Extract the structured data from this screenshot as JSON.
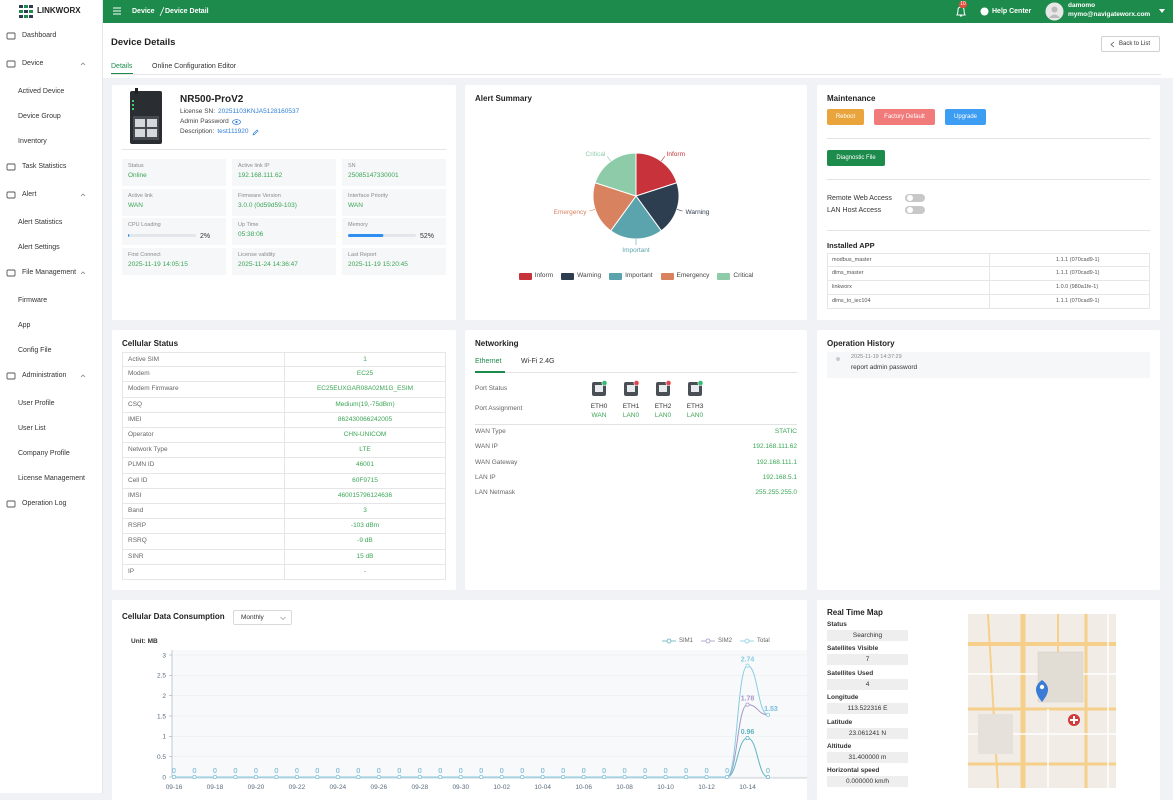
{
  "sidebar": {
    "logo": "LINKWORX",
    "menu": [
      {
        "label": "Dashboard"
      },
      {
        "label": "Device",
        "children": [
          "Actived Device",
          "Device Group",
          "Inventory"
        ]
      },
      {
        "label": "Task Statistics"
      },
      {
        "label": "Alert",
        "children": [
          "Alert Statistics",
          "Alert Settings"
        ]
      },
      {
        "label": "File Management",
        "children": [
          "Firmware",
          "App",
          "Config File"
        ]
      },
      {
        "label": "Administration",
        "children": [
          "User Profile",
          "User List",
          "Company Profile",
          "License Management"
        ]
      },
      {
        "label": "Operation Log"
      }
    ]
  },
  "topbar": {
    "breadcrumb": [
      "Device",
      "Device Detail"
    ],
    "notifications": 10,
    "help": "Help Center",
    "user": {
      "name": "damomo",
      "email": "mymo@navigateworx.com"
    }
  },
  "header": {
    "title": "Device Details",
    "back": "Back to List",
    "tabs": [
      "Details",
      "Online Configuration Editor"
    ]
  },
  "device": {
    "name": "NR500-ProV2",
    "license_sn_label": "License SN:",
    "license_sn": "20251103KNJA5128160537",
    "admin_password_label": "Admin Password",
    "description_label": "Description:",
    "description": "test111920",
    "stats": [
      {
        "label": "Status",
        "value": "Online"
      },
      {
        "label": "Active link IP",
        "value": "192.168.111.62"
      },
      {
        "label": "SN",
        "value": "25085147330001"
      },
      {
        "label": "Active link",
        "value": "WAN"
      },
      {
        "label": "Firmware Version",
        "value": "3.0.0 (0d59d59-103)"
      },
      {
        "label": "Interface Priority",
        "value": "WAN"
      },
      {
        "label": "CPU Loading",
        "value": 2,
        "value_label": "2%"
      },
      {
        "label": "Up Time",
        "value": "05:38:06"
      },
      {
        "label": "Memory",
        "value": 52,
        "value_label": "52%"
      },
      {
        "label": "First Connect",
        "value": "2025-11-19 14:05:15"
      },
      {
        "label": "License validity",
        "value": "2025-11-24 14:36:47"
      },
      {
        "label": "Last Report",
        "value": "2025-11-19 15:20:45"
      }
    ]
  },
  "maintenance": {
    "title": "Maintenance",
    "buttons": [
      {
        "label": "Reboot",
        "color": "#e9a43c"
      },
      {
        "label": "Factory Default",
        "color": "#f17b7b"
      },
      {
        "label": "Upgrade",
        "color": "#3d9df2"
      }
    ],
    "diagnostic": "Diagnostic File",
    "toggles": [
      "Remote Web Access",
      "LAN Host Access"
    ],
    "installed_title": "Installed APP",
    "apps": [
      [
        "modbus_master",
        "1.1.1 (070cad9-1)"
      ],
      [
        "dlms_master",
        "1.1.1 (070cad9-1)"
      ],
      [
        "linkworx",
        "1.0.0 (980a1fe-1)"
      ],
      [
        "dlms_to_iec104",
        "1.1.1 (070cad9-1)"
      ]
    ]
  },
  "cellular": {
    "title": "Cellular Status",
    "rows": [
      [
        "Active SIM",
        "1"
      ],
      [
        "Modem",
        "EC25"
      ],
      [
        "Modem Firmware",
        "EC25EUXGAR08A02M1G_ESIM"
      ],
      [
        "CSQ",
        "Medium(19,-75dBm)"
      ],
      [
        "IMEI",
        "862430066242005"
      ],
      [
        "Operator",
        "CHN-UNICOM"
      ],
      [
        "Network Type",
        "LTE"
      ],
      [
        "PLMN ID",
        "46001"
      ],
      [
        "Cell ID",
        "60F9715"
      ],
      [
        "IMSI",
        "460015796124636"
      ],
      [
        "Band",
        "3"
      ],
      [
        "RSRP",
        "-103 dBm"
      ],
      [
        "RSRQ",
        "-9 dB"
      ],
      [
        "SINR",
        "15 dB"
      ],
      [
        "IP",
        "-"
      ]
    ]
  },
  "networking": {
    "title": "Networking",
    "tabs": [
      "Ethernet",
      "Wi-Fi 2.4G"
    ],
    "port_status_label": "Port Status",
    "port_assignment_label": "Port Assignment",
    "ports": [
      {
        "name": "ETH0",
        "assignment": "WAN",
        "connected": true
      },
      {
        "name": "ETH1",
        "assignment": "LAN0",
        "connected": false
      },
      {
        "name": "ETH2",
        "assignment": "LAN0",
        "connected": false
      },
      {
        "name": "ETH3",
        "assignment": "LAN0",
        "connected": true
      }
    ],
    "fields": [
      [
        "WAN Type",
        "STATIC"
      ],
      [
        "WAN IP",
        "192.168.111.62"
      ],
      [
        "WAN Gateway",
        "192.168.111.1"
      ],
      [
        "LAN IP",
        "192.168.5.1"
      ],
      [
        "LAN Netmask",
        "255.255.255.0"
      ]
    ]
  },
  "history": {
    "title": "Operation History",
    "entries": [
      {
        "time": "2025-11-19 14:37:29",
        "text": "report admin password"
      }
    ]
  },
  "data_usage": {
    "period": "Monthly"
  },
  "map": {
    "title": "Real Time Map",
    "fields": [
      [
        "Status",
        "Searching"
      ],
      [
        "Satellites Visible",
        "7"
      ],
      [
        "Satellites Used",
        "4"
      ],
      [
        "Longitude",
        "113.522316 E"
      ],
      [
        "Latitude",
        "23.061241 N"
      ],
      [
        "Altitude",
        "31.400000 m"
      ],
      [
        "Horizontal speed",
        "0.000000 km/h"
      ]
    ]
  },
  "chart_data": [
    {
      "type": "pie",
      "title": "Alert Summary",
      "categories": [
        "Inform",
        "Warning",
        "Important",
        "Emergency",
        "Critical"
      ],
      "values": [
        1,
        1,
        1,
        1,
        1
      ],
      "colors": [
        "#c8323a",
        "#2d3e50",
        "#5ba3ad",
        "#d9825f",
        "#8ecba9"
      ]
    },
    {
      "type": "line",
      "title": "Cellular Data Consumption",
      "y_label": "Unit: MB",
      "categories": [
        "09-16",
        null,
        "09-18",
        null,
        "09-20",
        null,
        "09-22",
        null,
        "09-24",
        null,
        "09-26",
        null,
        "09-28",
        null,
        "09-30",
        null,
        "10-02",
        null,
        "10-04",
        null,
        "10-06",
        null,
        "10-08",
        null,
        "10-10",
        null,
        "10-12",
        null,
        "10-14",
        null
      ],
      "series": [
        {
          "name": "SIM1",
          "color": "#5fb4c1",
          "values": [
            0,
            0,
            0,
            0,
            0,
            0,
            0,
            0,
            0,
            0,
            0,
            0,
            0,
            0,
            0,
            0,
            0,
            0,
            0,
            0,
            0,
            0,
            0,
            0,
            0,
            0,
            0,
            0,
            0.96,
            0
          ]
        },
        {
          "name": "SIM2",
          "color": "#a597c9",
          "values": [
            0,
            0,
            0,
            0,
            0,
            0,
            0,
            0,
            0,
            0,
            0,
            0,
            0,
            0,
            0,
            0,
            0,
            0,
            0,
            0,
            0,
            0,
            0,
            0,
            0,
            0,
            0,
            0,
            1.78,
            1.53
          ]
        },
        {
          "name": "Total",
          "color": "#86cde2",
          "values": [
            0,
            0,
            0,
            0,
            0,
            0,
            0,
            0,
            0,
            0,
            0,
            0,
            0,
            0,
            0,
            0,
            0,
            0,
            0,
            0,
            0,
            0,
            0,
            0,
            0,
            0,
            0,
            0,
            2.74,
            1.53
          ]
        }
      ],
      "ylim": [
        0,
        3
      ],
      "yticks": [
        0,
        0.5,
        1,
        1.5,
        2,
        2.5,
        3
      ],
      "grid": true
    }
  ]
}
